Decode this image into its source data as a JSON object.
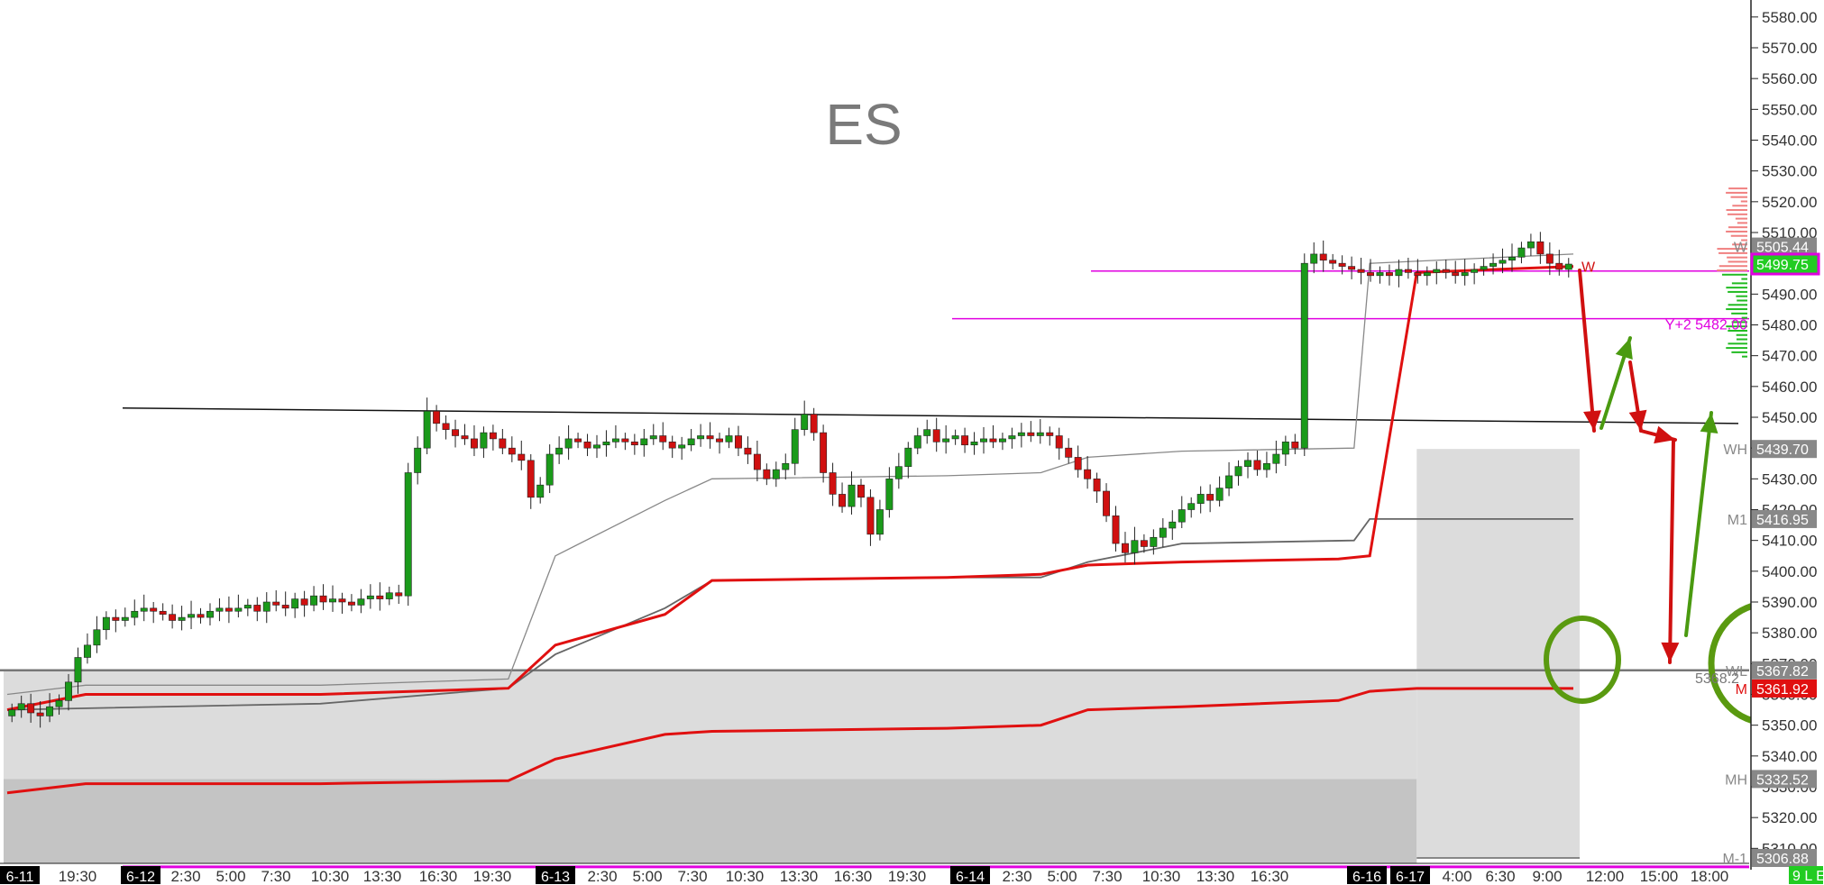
{
  "chart_data": {
    "type": "candlestick",
    "title": "ES",
    "ylim": [
      5300,
      5585
    ],
    "y_ticks": [
      5310,
      5320,
      5330,
      5340,
      5350,
      5360,
      5370,
      5380,
      5390,
      5400,
      5410,
      5420,
      5430,
      5440,
      5450,
      5460,
      5470,
      5480,
      5490,
      5500,
      5510,
      5520,
      5530,
      5540,
      5550,
      5560,
      5570,
      5580
    ],
    "y_tick_labels": [
      "5310.00",
      "5320.00",
      "5330.00",
      "5340.00",
      "5350.00",
      "5360.00",
      "5370.00",
      "5380.00",
      "5390.00",
      "5400.00",
      "5410.00",
      "5420.00",
      "5430.00",
      "5440.00",
      "5450.00",
      "5460.00",
      "5470.00",
      "5480.00",
      "5490.00",
      "5500.00",
      "5510.00",
      "5520.00",
      "5530.00",
      "5540.00",
      "5550.00",
      "5560.00",
      "5570.00",
      "5580.00"
    ],
    "x_tick_labels": [
      {
        "label": "6-11",
        "date": true
      },
      {
        "label": "19:30"
      },
      {
        "label": "6-12",
        "date": true
      },
      {
        "label": "2:30"
      },
      {
        "label": "5:00"
      },
      {
        "label": "7:30"
      },
      {
        "label": "10:30"
      },
      {
        "label": "13:30"
      },
      {
        "label": "16:30"
      },
      {
        "label": "19:30"
      },
      {
        "label": "6-13",
        "date": true
      },
      {
        "label": "2:30"
      },
      {
        "label": "5:00"
      },
      {
        "label": "7:30"
      },
      {
        "label": "10:30"
      },
      {
        "label": "13:30"
      },
      {
        "label": "16:30"
      },
      {
        "label": "19:30"
      },
      {
        "label": "6-14",
        "date": true
      },
      {
        "label": "2:30"
      },
      {
        "label": "5:00"
      },
      {
        "label": "7:30"
      },
      {
        "label": "10:30"
      },
      {
        "label": "13:30"
      },
      {
        "label": "16:30"
      },
      {
        "label": "6-16",
        "date": true
      },
      {
        "label": "6-17",
        "date": true
      },
      {
        "label": "4:00"
      },
      {
        "label": "6:30"
      },
      {
        "label": "9:00"
      },
      {
        "label": "12:00"
      },
      {
        "label": "15:00"
      },
      {
        "label": "18:00"
      }
    ],
    "candles_close": [
      5355,
      5357,
      5354,
      5353,
      5356,
      5358,
      5364,
      5372,
      5376,
      5381,
      5385,
      5384,
      5385,
      5387,
      5388,
      5387,
      5386,
      5384,
      5385,
      5386,
      5385,
      5387,
      5388,
      5387,
      5388,
      5389,
      5387,
      5390,
      5389,
      5388,
      5391,
      5389,
      5392,
      5390,
      5391,
      5390,
      5389,
      5391,
      5392,
      5391,
      5393,
      5392,
      5432,
      5440,
      5452,
      5448,
      5446,
      5444,
      5443,
      5440,
      5445,
      5443,
      5440,
      5438,
      5436,
      5424,
      5428,
      5438,
      5440,
      5443,
      5442,
      5440,
      5441,
      5442,
      5443,
      5442,
      5441,
      5443,
      5444,
      5442,
      5440,
      5441,
      5443,
      5444,
      5443,
      5442,
      5444,
      5440,
      5438,
      5433,
      5430,
      5433,
      5435,
      5446,
      5451,
      5445,
      5432,
      5425,
      5421,
      5428,
      5424,
      5412,
      5420,
      5430,
      5434,
      5440,
      5444,
      5446,
      5442,
      5443,
      5444,
      5441,
      5442,
      5443,
      5442,
      5443,
      5444,
      5445,
      5444,
      5445,
      5444,
      5440,
      5437,
      5433,
      5430,
      5426,
      5418,
      5409,
      5406,
      5410,
      5408,
      5411,
      5414,
      5416,
      5420,
      5422,
      5425,
      5423,
      5427,
      5431,
      5434,
      5436,
      5433,
      5435,
      5438,
      5442,
      5440,
      5500,
      5503,
      5501,
      5500,
      5499,
      5498,
      5497,
      5496,
      5497,
      5496,
      5498,
      5497,
      5496,
      5497,
      5498,
      5497,
      5496,
      5497,
      5498,
      5499,
      5500,
      5501,
      5502,
      5505,
      5507,
      5503,
      5500,
      5498,
      5499.75
    ],
    "vwap_red": {
      "x": [
        0,
        0.05,
        0.2,
        0.32,
        0.35,
        0.42,
        0.45,
        0.6,
        0.66,
        0.69,
        0.75,
        0.85,
        0.87,
        0.9,
        1.0
      ],
      "y": [
        5355,
        5360,
        5360,
        5362,
        5376,
        5386,
        5397,
        5398,
        5399,
        5402,
        5403,
        5404,
        5405,
        5497,
        5499
      ]
    },
    "vwap_red_lower": {
      "x": [
        0,
        0.05,
        0.2,
        0.32,
        0.35,
        0.42,
        0.45,
        0.6,
        0.66,
        0.69,
        0.75,
        0.85,
        0.87,
        0.9,
        1.0
      ],
      "y": [
        5328,
        5331,
        5331,
        5332,
        5339,
        5347,
        5348,
        5349,
        5350,
        5355,
        5356,
        5358,
        5361,
        5361.92,
        5361.92
      ]
    },
    "band_upper": {
      "x": [
        0,
        0.05,
        0.2,
        0.32,
        0.35,
        0.42,
        0.45,
        0.6,
        0.66,
        0.69,
        0.75,
        0.86,
        0.87,
        1.0
      ],
      "y": [
        5360,
        5363,
        5363,
        5365,
        5405,
        5423,
        5430,
        5431,
        5432,
        5437,
        5439,
        5440,
        5500,
        5503
      ]
    },
    "band_mid": {
      "x": [
        0,
        0.2,
        0.32,
        0.35,
        0.42,
        0.45,
        0.6,
        0.66,
        0.69,
        0.75,
        0.86,
        0.87,
        1.0
      ],
      "y": [
        5355,
        5357,
        5362,
        5373,
        5388,
        5397,
        5398,
        5398,
        5403,
        5409,
        5410,
        5416.95,
        5416.95
      ]
    },
    "levels": [
      {
        "name": "Y+2",
        "value": 5482.0,
        "label": "Y+2  5482.00",
        "color": "#e000e0"
      },
      {
        "name": "WH",
        "value": 5439.7,
        "label": "5439.70",
        "tag": "WH",
        "color": "#888888"
      },
      {
        "name": "M1",
        "value": 5416.95,
        "label": "5416.95",
        "tag": "M1",
        "color": "#888888"
      },
      {
        "name": "WL",
        "value": 5367.82,
        "label": "5367.82",
        "tag": "WL",
        "color": "#888888"
      },
      {
        "name": "M",
        "value": 5361.92,
        "label": "5361.92",
        "tag": "M",
        "color": "#e01010"
      },
      {
        "name": "MH",
        "value": 5332.52,
        "label": "5332.52",
        "tag": "MH",
        "color": "#888888"
      },
      {
        "name": "M-1",
        "value": 5306.88,
        "label": "5306.88",
        "tag": "M-1",
        "color": "#888888"
      },
      {
        "name": "last",
        "value": 5499.75,
        "label": "5499.75",
        "color": "#22bb22"
      },
      {
        "name": "W",
        "value": 5505.44,
        "label": "5505.44",
        "tag": "W",
        "color": "#888888"
      }
    ],
    "side_text": {
      "w_label": "W",
      "mid_value": "5368.2",
      "corner_text": "9 L E"
    },
    "colors": {
      "up": "#1a9a1a",
      "down": "#d01010",
      "vwap": "#e01010",
      "magenta": "#e000e0",
      "arrow_green": "#4a9a10",
      "circle_green": "#5a9a10",
      "gray_zone": "#dcdcdc",
      "dark_zone": "#c4c4c4",
      "axis_bg": "#ffffff"
    }
  }
}
